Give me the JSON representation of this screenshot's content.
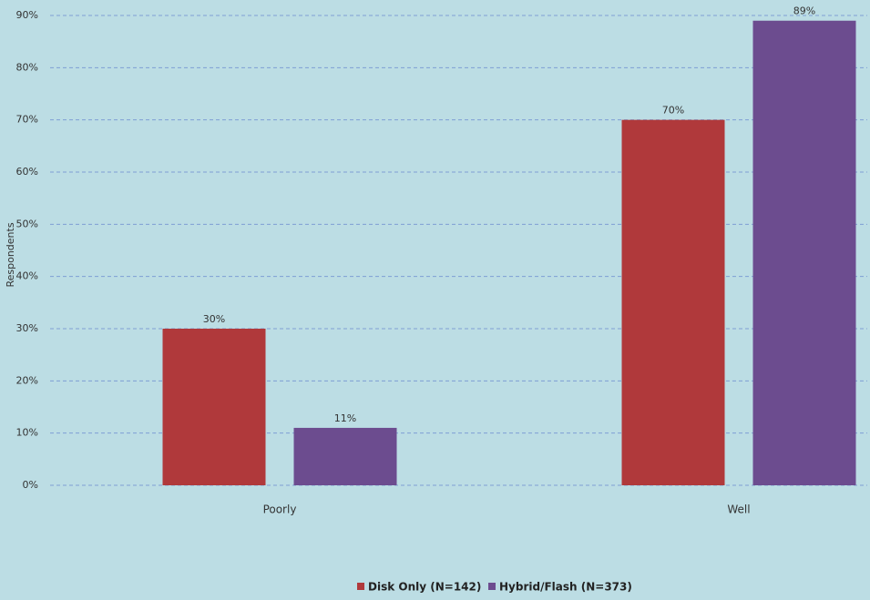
{
  "chart_data": {
    "type": "bar",
    "y_label": "Respondents",
    "categories": [
      "Poorly",
      "Well"
    ],
    "series": [
      {
        "name": "Disk Only (N=142)",
        "color": "#b0393b",
        "values": [
          30,
          70
        ],
        "value_labels": [
          "30%",
          "70%"
        ]
      },
      {
        "name": "Hybrid/Flash (N=373)",
        "color": "#6c4c8f",
        "values": [
          11,
          89
        ],
        "value_labels": [
          "11%",
          "89%"
        ]
      }
    ],
    "ylim": [
      0,
      90
    ],
    "yticks": [
      {
        "value": 0,
        "label": "0%"
      },
      {
        "value": 10,
        "label": "10%"
      },
      {
        "value": 20,
        "label": "20%"
      },
      {
        "value": 30,
        "label": "30%"
      },
      {
        "value": 40,
        "label": "40%"
      },
      {
        "value": 50,
        "label": "50%"
      },
      {
        "value": 60,
        "label": "60%"
      },
      {
        "value": 70,
        "label": "70%"
      },
      {
        "value": 80,
        "label": "80%"
      },
      {
        "value": 90,
        "label": "90%"
      }
    ],
    "grid": true,
    "legend": "bottom"
  }
}
